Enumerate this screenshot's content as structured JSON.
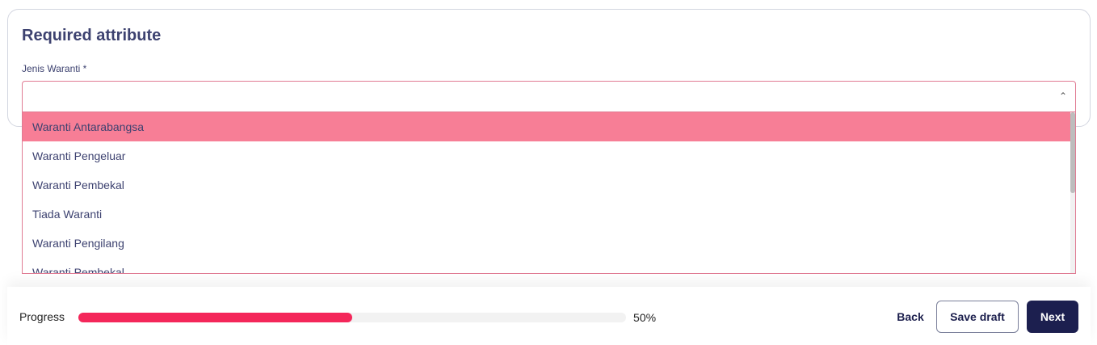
{
  "section": {
    "title": "Required attribute",
    "field_label": "Jenis Waranti *",
    "value": ""
  },
  "dropdown": {
    "options": [
      "Waranti Antarabangsa",
      "Waranti Pengeluar",
      "Waranti Pembekal",
      "Tiada Waranti",
      "Waranti Pengilang",
      "Waranti Pembekal"
    ],
    "highlighted_index": 0
  },
  "footer": {
    "progress_label": "Progress",
    "progress_percent": 50,
    "progress_text": "50%",
    "back": "Back",
    "save_draft": "Save draft",
    "next": "Next"
  },
  "colors": {
    "accent": "#f4275a",
    "highlight": "#f77e96",
    "primary": "#1c1f4f"
  }
}
